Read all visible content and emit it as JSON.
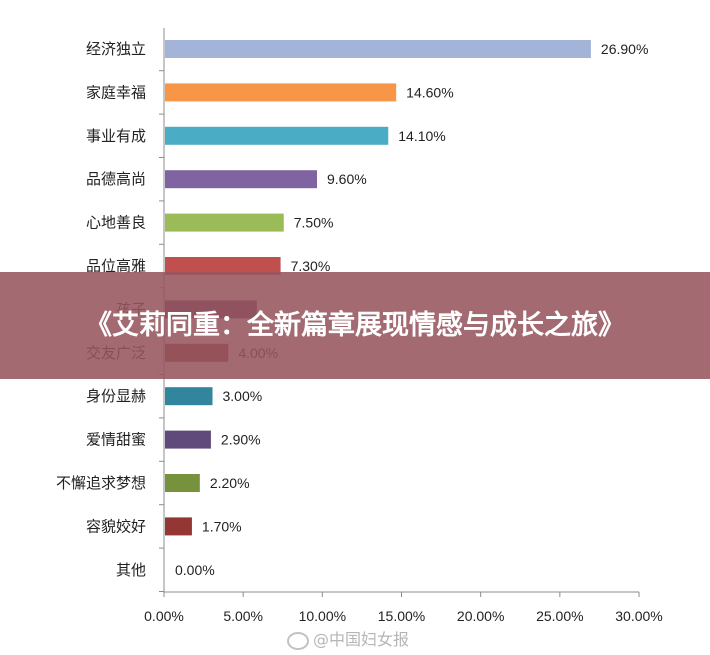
{
  "banner": {
    "title": "《艾莉同重：全新篇章展现情感与成长之旅》"
  },
  "watermark": {
    "text": "@中国妇女报",
    "icon": "weibo-icon"
  },
  "chart_data": {
    "type": "bar",
    "orientation": "horizontal",
    "categories": [
      "经济独立",
      "家庭幸福",
      "事业有成",
      "品德高尚",
      "心地善良",
      "品位高雅",
      "孩子",
      "交友广泛",
      "身份显赫",
      "爱情甜蜜",
      "不懈追求梦想",
      "容貌姣好",
      "其他"
    ],
    "values": [
      26.9,
      14.6,
      14.1,
      9.6,
      7.5,
      7.3,
      5.8,
      4.0,
      3.0,
      2.9,
      2.2,
      1.7,
      0.0
    ],
    "value_labels": [
      "26.90%",
      "14.60%",
      "14.10%",
      "9.60%",
      "7.50%",
      "7.30%",
      "",
      "4.00%",
      "3.00%",
      "2.90%",
      "2.20%",
      "1.70%",
      "0.00%"
    ],
    "colors": [
      "#a4b4d8",
      "#f79646",
      "#4bacc6",
      "#8064a2",
      "#9bbb59",
      "#c0504d",
      "#5a3a5a",
      "#8f3a2e",
      "#31859c",
      "#604a7b",
      "#76923c",
      "#943634",
      "#7f7f7f"
    ],
    "xlim": [
      0,
      30
    ],
    "xticks": [
      "0.00%",
      "5.00%",
      "10.00%",
      "15.00%",
      "20.00%",
      "25.00%",
      "30.00%"
    ],
    "grid": false
  }
}
